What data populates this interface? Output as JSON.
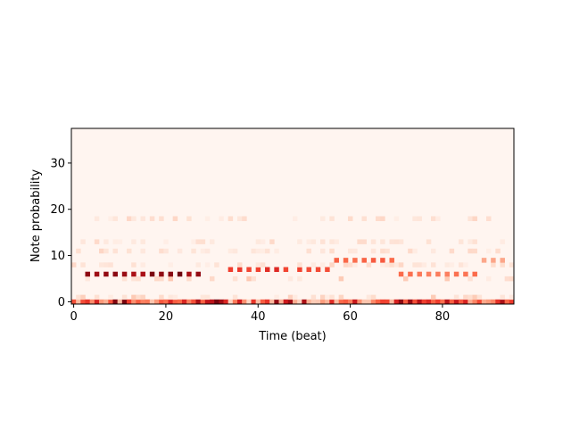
{
  "chart_data": {
    "type": "heatmap",
    "title": "",
    "xlabel": "Time (beat)",
    "ylabel": "Note probability",
    "x_range": [
      -0.5,
      95.5
    ],
    "y_range": [
      -0.5,
      37.5
    ],
    "x_ticks": [
      0,
      20,
      40,
      60,
      80
    ],
    "y_ticks": [
      0,
      10,
      20,
      30
    ],
    "colormap": "Reds",
    "colors": {
      "low": "#fff5f0",
      "mid": "#fb6a4a",
      "high": "#67000d"
    },
    "grid": false,
    "main_notes": [
      {
        "t": [
          3,
          28
        ],
        "note": 6,
        "step": 2,
        "value": 1.0
      },
      {
        "t": [
          34,
          46
        ],
        "note": 7,
        "step": 2,
        "value": 0.7
      },
      {
        "t": [
          49,
          55
        ],
        "note": 7,
        "step": 2,
        "value": 0.65
      },
      {
        "t": [
          57,
          69
        ],
        "note": 9,
        "step": 2,
        "value": 0.55
      },
      {
        "t": [
          71,
          87
        ],
        "note": 6,
        "step": 2,
        "value": 0.5
      },
      {
        "t": [
          89,
          94
        ],
        "note": 9,
        "step": 2,
        "value": 0.35
      }
    ],
    "bass_note": 0,
    "harmonic_notes": [
      8,
      11,
      13,
      18
    ]
  }
}
